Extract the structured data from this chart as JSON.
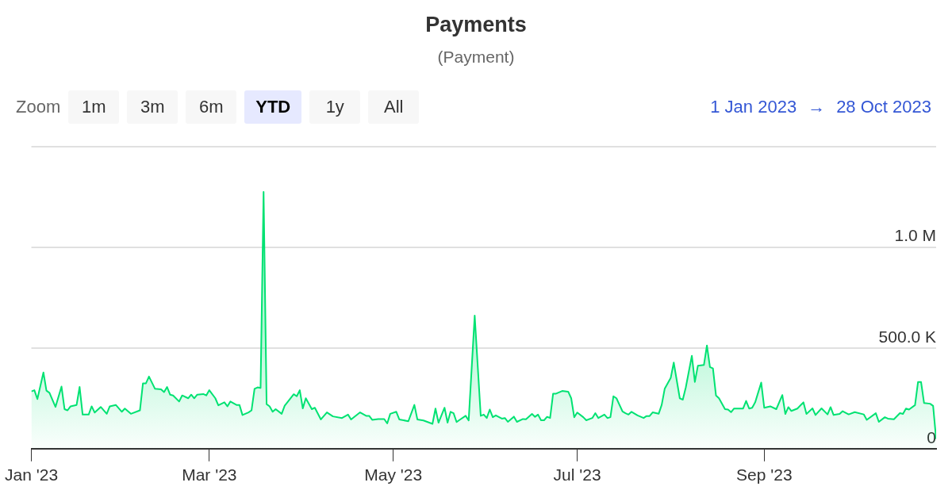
{
  "chart_data": {
    "type": "area",
    "title": "Payments",
    "subtitle": "(Payment)",
    "annotations": [
      "Zoom",
      "1m",
      "3m",
      "6m",
      "YTD",
      "1y",
      "All",
      "1 Jan 2023",
      "→",
      "28 Oct 2023"
    ],
    "color": "#00e272",
    "x": [
      "2023-01-01",
      "2023-01-02",
      "2023-01-03",
      "2023-01-05",
      "2023-01-06",
      "2023-01-07",
      "2023-01-09",
      "2023-01-11",
      "2023-01-12",
      "2023-01-13",
      "2023-01-14",
      "2023-01-16",
      "2023-01-17",
      "2023-01-18",
      "2023-01-20",
      "2023-01-21",
      "2023-01-22",
      "2023-01-24",
      "2023-01-26",
      "2023-01-27",
      "2023-01-29",
      "2023-01-31",
      "2023-02-01",
      "2023-02-03",
      "2023-02-06",
      "2023-02-07",
      "2023-02-08",
      "2023-02-09",
      "2023-02-11",
      "2023-02-13",
      "2023-02-14",
      "2023-02-15",
      "2023-02-16",
      "2023-02-17",
      "2023-02-19",
      "2023-02-20",
      "2023-02-22",
      "2023-02-23",
      "2023-02-24",
      "2023-02-25",
      "2023-02-27",
      "2023-02-28",
      "2023-03-01",
      "2023-03-03",
      "2023-03-04",
      "2023-03-06",
      "2023-03-07",
      "2023-03-08",
      "2023-03-10",
      "2023-03-11",
      "2023-03-12",
      "2023-03-14",
      "2023-03-15",
      "2023-03-16",
      "2023-03-17",
      "2023-03-18",
      "2023-03-19",
      "2023-03-20",
      "2023-03-21",
      "2023-03-22",
      "2023-03-23",
      "2023-03-25",
      "2023-03-26",
      "2023-03-29",
      "2023-03-30",
      "2023-03-31",
      "2023-04-01",
      "2023-04-02",
      "2023-04-04",
      "2023-04-05",
      "2023-04-07",
      "2023-04-09",
      "2023-04-11",
      "2023-04-14",
      "2023-04-16",
      "2023-04-17",
      "2023-04-20",
      "2023-04-22",
      "2023-04-23",
      "2023-04-24",
      "2023-04-26",
      "2023-04-28",
      "2023-04-29",
      "2023-04-30",
      "2023-05-02",
      "2023-05-03",
      "2023-05-06",
      "2023-05-08",
      "2023-05-09",
      "2023-05-11",
      "2023-05-14",
      "2023-05-15",
      "2023-05-16",
      "2023-05-18",
      "2023-05-19",
      "2023-05-20",
      "2023-05-21",
      "2023-05-22",
      "2023-05-23",
      "2023-05-25",
      "2023-05-26",
      "2023-05-28",
      "2023-05-30",
      "2023-05-31",
      "2023-06-01",
      "2023-06-02",
      "2023-06-03",
      "2023-06-04",
      "2023-06-06",
      "2023-06-07",
      "2023-06-08",
      "2023-06-10",
      "2023-06-11",
      "2023-06-13",
      "2023-06-14",
      "2023-06-16",
      "2023-06-17",
      "2023-06-18",
      "2023-06-19",
      "2023-06-20",
      "2023-06-21",
      "2023-06-22",
      "2023-06-23",
      "2023-06-24",
      "2023-06-26",
      "2023-06-28",
      "2023-06-29",
      "2023-06-30",
      "2023-07-01",
      "2023-07-03",
      "2023-07-04",
      "2023-07-06",
      "2023-07-07",
      "2023-07-08",
      "2023-07-10",
      "2023-07-11",
      "2023-07-12",
      "2023-07-13",
      "2023-07-14",
      "2023-07-16",
      "2023-07-17",
      "2023-07-18",
      "2023-07-19",
      "2023-07-21",
      "2023-07-23",
      "2023-07-24",
      "2023-07-25",
      "2023-07-26",
      "2023-07-28",
      "2023-07-29",
      "2023-07-30",
      "2023-08-01",
      "2023-08-02",
      "2023-08-04",
      "2023-08-05",
      "2023-08-06",
      "2023-08-08",
      "2023-08-09",
      "2023-08-10",
      "2023-08-12",
      "2023-08-13",
      "2023-08-14",
      "2023-08-15",
      "2023-08-16",
      "2023-08-17",
      "2023-08-19",
      "2023-08-20",
      "2023-08-21",
      "2023-08-22",
      "2023-08-25",
      "2023-08-26",
      "2023-08-27",
      "2023-08-28",
      "2023-08-29",
      "2023-08-31",
      "2023-09-01",
      "2023-09-03",
      "2023-09-05",
      "2023-09-07",
      "2023-09-08",
      "2023-09-09",
      "2023-09-10",
      "2023-09-12",
      "2023-09-14",
      "2023-09-15",
      "2023-09-17",
      "2023-09-18",
      "2023-09-20",
      "2023-09-22",
      "2023-09-23",
      "2023-09-24",
      "2023-09-26",
      "2023-09-27",
      "2023-09-29",
      "2023-10-01",
      "2023-10-04",
      "2023-10-05",
      "2023-10-08",
      "2023-10-09",
      "2023-10-11",
      "2023-10-12",
      "2023-10-14",
      "2023-10-16",
      "2023-10-17",
      "2023-10-18",
      "2023-10-19",
      "2023-10-21",
      "2023-10-22",
      "2023-10-23",
      "2023-10-24",
      "2023-10-26",
      "2023-10-27",
      "2023-10-28"
    ],
    "values": [
      284000,
      290000,
      246000,
      378000,
      288000,
      277000,
      207000,
      308000,
      196000,
      190000,
      210000,
      217000,
      306000,
      169000,
      169000,
      210000,
      179000,
      207000,
      173000,
      210000,
      217000,
      183000,
      199000,
      173000,
      190000,
      324000,
      324000,
      358000,
      297000,
      294000,
      281000,
      306000,
      268000,
      264000,
      234000,
      264000,
      250000,
      268000,
      250000,
      268000,
      271000,
      264000,
      290000,
      250000,
      215000,
      230000,
      210000,
      234000,
      217000,
      217000,
      167000,
      180000,
      190000,
      297000,
      304000,
      301000,
      1274000,
      221000,
      210000,
      183000,
      196000,
      173000,
      213000,
      270000,
      260000,
      290000,
      200000,
      250000,
      196000,
      203000,
      145000,
      180000,
      160000,
      152000,
      169000,
      145000,
      180000,
      163000,
      163000,
      143000,
      147000,
      147000,
      125000,
      173000,
      183000,
      145000,
      136000,
      217000,
      145000,
      140000,
      123000,
      199000,
      129000,
      203000,
      129000,
      183000,
      176000,
      132000,
      143000,
      163000,
      140000,
      660000,
      163000,
      169000,
      152000,
      194000,
      156000,
      165000,
      149000,
      152000,
      133000,
      159000,
      133000,
      147000,
      146000,
      172000,
      158000,
      169000,
      141000,
      141000,
      158000,
      152000,
      273000,
      273000,
      286000,
      283000,
      250000,
      156000,
      179000,
      156000,
      141000,
      152000,
      176000,
      152000,
      169000,
      152000,
      156000,
      260000,
      250000,
      185000,
      176000,
      169000,
      183000,
      165000,
      152000,
      162000,
      162000,
      180000,
      173000,
      217000,
      297000,
      351000,
      427000,
      250000,
      243000,
      304000,
      461000,
      331000,
      411000,
      415000,
      512000,
      405000,
      398000,
      264000,
      250000,
      196000,
      194000,
      181000,
      199000,
      199000,
      237000,
      199000,
      203000,
      230000,
      328000,
      203000,
      210000,
      196000,
      266000,
      172000,
      206000,
      187000,
      199000,
      230000,
      172000,
      200000,
      167000,
      200000,
      170000,
      206000,
      167000,
      172000,
      186000,
      170000,
      181000,
      170000,
      143000,
      176000,
      133000,
      156000,
      149000,
      146000,
      176000,
      172000,
      199000,
      194000,
      216000,
      331000,
      331000,
      226000,
      223000,
      212000,
      48000
    ],
    "xlim": [
      "2023-01-01",
      "2023-10-28"
    ],
    "xticks": [
      {
        "value": "2023-01-01",
        "label": "Jan '23"
      },
      {
        "value": "2023-03-01",
        "label": "Mar '23"
      },
      {
        "value": "2023-05-01",
        "label": "May '23"
      },
      {
        "value": "2023-07-01",
        "label": "Jul '23"
      },
      {
        "value": "2023-09-01",
        "label": "Sep '23"
      }
    ],
    "ylim": [
      0,
      1500000
    ],
    "yticks": [
      {
        "value": 0,
        "label": "0"
      },
      {
        "value": 500000,
        "label": "500.0 K"
      },
      {
        "value": 1000000,
        "label": "1.0 M"
      },
      {
        "value": 1500000,
        "label": null
      }
    ],
    "grid": "y",
    "legend": false,
    "marker": "none",
    "line_style": "solid"
  }
}
